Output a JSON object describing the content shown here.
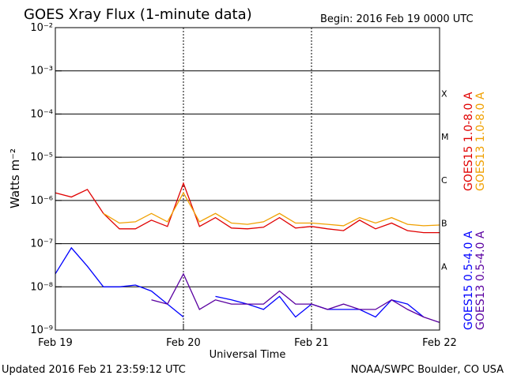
{
  "chart_data": {
    "type": "line",
    "title": "GOES Xray Flux (1-minute data)",
    "subtitle": "Begin:  2016 Feb 19 0000 UTC",
    "ylabel": "Watts m⁻²",
    "xlabel": "Universal Time",
    "footer_left": "Updated 2016 Feb 21 23:59:12 UTC",
    "footer_right": "NOAA/SWPC Boulder, CO USA",
    "ylog": true,
    "grid": true,
    "ylim": [
      1e-09,
      0.01
    ],
    "yticks": [
      {
        "value": 0.01,
        "label": "10⁻²"
      },
      {
        "value": 0.001,
        "label": "10⁻³"
      },
      {
        "value": 0.0001,
        "label": "10⁻⁴"
      },
      {
        "value": 1e-05,
        "label": "10⁻⁵"
      },
      {
        "value": 1e-06,
        "label": "10⁻⁶"
      },
      {
        "value": 1e-07,
        "label": "10⁻⁷"
      },
      {
        "value": 1e-08,
        "label": "10⁻⁸"
      },
      {
        "value": 1e-09,
        "label": "10⁻⁹"
      }
    ],
    "xlim": [
      0,
      3
    ],
    "xticks": [
      {
        "value": 0,
        "label": "Feb 19"
      },
      {
        "value": 1,
        "label": "Feb 20"
      },
      {
        "value": 2,
        "label": "Feb 21"
      },
      {
        "value": 3,
        "label": "Feb 22"
      }
    ],
    "flare_classes": [
      {
        "value": 0.0001,
        "label": "X"
      },
      {
        "value": 1e-05,
        "label": "M"
      },
      {
        "value": 1e-06,
        "label": "C"
      },
      {
        "value": 1e-07,
        "label": "B"
      },
      {
        "value": 1e-08,
        "label": "A"
      }
    ],
    "x": [
      0,
      0.125,
      0.25,
      0.375,
      0.5,
      0.625,
      0.75,
      0.875,
      1,
      1.125,
      1.25,
      1.375,
      1.5,
      1.625,
      1.75,
      1.875,
      2,
      2.125,
      2.25,
      2.375,
      2.5,
      2.625,
      2.75,
      2.875,
      3
    ],
    "series": [
      {
        "name": "GOES15 1.0-8.0 A",
        "color": "#e00000",
        "values": [
          1.5e-06,
          1.2e-06,
          1.8e-06,
          5e-07,
          2.2e-07,
          2.2e-07,
          3.5e-07,
          2.5e-07,
          2.5e-06,
          2.5e-07,
          4e-07,
          2.3e-07,
          2.2e-07,
          2.4e-07,
          4e-07,
          2.3e-07,
          2.5e-07,
          2.2e-07,
          2e-07,
          3.5e-07,
          2.2e-07,
          3e-07,
          2e-07,
          1.8e-07,
          1.8e-07
        ]
      },
      {
        "name": "GOES13 1.0-8.0 A",
        "color": "#f0a000",
        "values": [
          null,
          null,
          null,
          5e-07,
          3e-07,
          3.2e-07,
          5e-07,
          3.2e-07,
          1.5e-06,
          3.2e-07,
          5e-07,
          3e-07,
          2.8e-07,
          3.2e-07,
          5e-07,
          3e-07,
          3e-07,
          2.8e-07,
          2.6e-07,
          4e-07,
          3e-07,
          4e-07,
          2.8e-07,
          2.6e-07,
          2.7e-07
        ]
      },
      {
        "name": "GOES15 0.5-4.0 A",
        "color": "#0000ff",
        "values": [
          2e-08,
          8e-08,
          3e-08,
          1e-08,
          1e-08,
          1.1e-08,
          8e-09,
          4e-09,
          2e-09,
          null,
          6e-09,
          5e-09,
          4e-09,
          3e-09,
          6e-09,
          2e-09,
          4e-09,
          3e-09,
          3e-09,
          3e-09,
          2e-09,
          5e-09,
          4e-09,
          2e-09,
          null
        ]
      },
      {
        "name": "GOES13 0.5-4.0 A",
        "color": "#5a00a0",
        "values": [
          null,
          null,
          null,
          null,
          null,
          null,
          5e-09,
          4e-09,
          2e-08,
          3e-09,
          5e-09,
          4e-09,
          4e-09,
          4e-09,
          8e-09,
          4e-09,
          4e-09,
          3e-09,
          4e-09,
          3e-09,
          3e-09,
          5e-09,
          3e-09,
          2e-09,
          1.5e-09
        ]
      }
    ]
  }
}
